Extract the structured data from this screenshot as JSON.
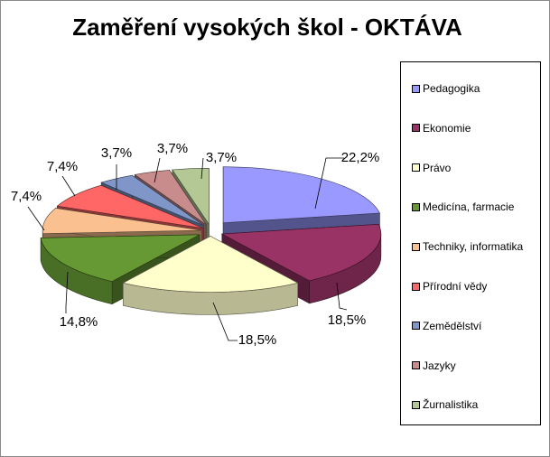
{
  "chart_data": {
    "type": "pie",
    "title": "Zaměření vysokých škol - OKTÁVA",
    "slices": [
      {
        "label": "Pedagogika",
        "value": 22.2,
        "value_label": "22,2%",
        "color": "#9999ff"
      },
      {
        "label": "Ekonomie",
        "value": 18.5,
        "value_label": "18,5%",
        "color": "#993366"
      },
      {
        "label": "Právo",
        "value": 18.5,
        "value_label": "18,5%",
        "color": "#ffffcc"
      },
      {
        "label": "Medicína, farmacie",
        "value": 14.8,
        "value_label": "14,8%",
        "color": "#669933"
      },
      {
        "label": "Techniky, informatika",
        "value": 7.4,
        "value_label": "7,4%",
        "color": "#fac090"
      },
      {
        "label": "Přírodní vědy",
        "value": 7.4,
        "value_label": "7,4%",
        "color": "#ff6666"
      },
      {
        "label": "Zemědělství",
        "value": 3.7,
        "value_label": "3,7%",
        "color": "#8096c8"
      },
      {
        "label": "Jazyky",
        "value": 3.7,
        "value_label": "3,7%",
        "color": "#c88c8c"
      },
      {
        "label": "Žurnalistika",
        "value": 3.7,
        "value_label": "3,7%",
        "color": "#b4c896"
      }
    ],
    "legend_position": "right",
    "exploded": true,
    "three_d": true
  }
}
